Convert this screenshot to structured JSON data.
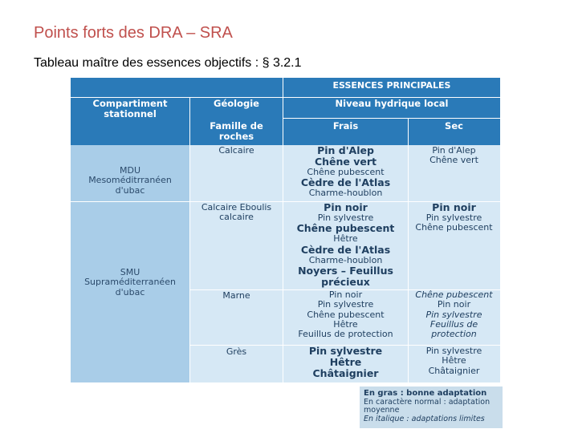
{
  "slide": {
    "title": "Points forts des DRA – SRA",
    "subtitle": "Tableau maître des essences objectifs : § 3.2.1"
  },
  "table": {
    "group_header": "ESSENCES PRINCIPALES",
    "col_compartment": "Compartiment stationnel",
    "col_geology": "Géologie",
    "col_family": "Famille de roches",
    "col_water": "Niveau hydrique local",
    "col_fresh": "Frais",
    "col_dry": "Sec",
    "zones": [
      {
        "name": "MDU Mesoméditrranéen d'ubac"
      },
      {
        "name": "SMU Supraméditerranéen d'ubac"
      }
    ],
    "rows": [
      {
        "rock": "Calcaire",
        "fresh": [
          {
            "t": "Pin d'Alep",
            "s": "b"
          },
          {
            "t": "Chêne vert",
            "s": "b"
          },
          {
            "t": "Chêne pubescent",
            "s": "s"
          },
          {
            "t": "Cèdre de l'Atlas",
            "s": "b"
          },
          {
            "t": "Charme-houblon",
            "s": "s"
          }
        ],
        "dry": [
          {
            "t": "Pin d'Alep",
            "s": "s"
          },
          {
            "t": "Chêne vert",
            "s": "s"
          }
        ]
      },
      {
        "rock": "Calcaire Eboulis calcaire",
        "fresh": [
          {
            "t": "Pin noir",
            "s": "b"
          },
          {
            "t": "Pin sylvestre",
            "s": "s"
          },
          {
            "t": "Chêne pubescent",
            "s": "b"
          },
          {
            "t": "Hêtre",
            "s": "s"
          },
          {
            "t": "Cèdre de l'Atlas",
            "s": "b"
          },
          {
            "t": "Charme-houblon",
            "s": "s"
          },
          {
            "t": "Noyers – Feuillus précieux",
            "s": "b"
          }
        ],
        "dry": [
          {
            "t": "Pin noir",
            "s": "b"
          },
          {
            "t": "Pin sylvestre",
            "s": "s"
          },
          {
            "t": "Chêne pubescent",
            "s": "s"
          }
        ]
      },
      {
        "rock": "Marne",
        "fresh": [
          {
            "t": "Pin noir",
            "s": "s"
          },
          {
            "t": "Pin sylvestre",
            "s": "s"
          },
          {
            "t": "Chêne pubescent",
            "s": "s"
          },
          {
            "t": "Hêtre",
            "s": "s"
          },
          {
            "t": "Feuillus de protection",
            "s": "s"
          }
        ],
        "dry": [
          {
            "t": "Chêne pubescent",
            "s": "it"
          },
          {
            "t": "Pin noir",
            "s": "s"
          },
          {
            "t": "Pin sylvestre",
            "s": "it"
          },
          {
            "t": "Feuillus de protection",
            "s": "it"
          }
        ]
      },
      {
        "rock": "Grès",
        "fresh": [
          {
            "t": "Pin sylvestre",
            "s": "b"
          },
          {
            "t": "Hêtre",
            "s": "b"
          },
          {
            "t": "Châtaignier",
            "s": "b"
          }
        ],
        "dry": [
          {
            "t": "Pin sylvestre",
            "s": "s"
          },
          {
            "t": "Hêtre",
            "s": "s"
          },
          {
            "t": "Châtaignier",
            "s": "s"
          }
        ]
      }
    ]
  },
  "legend": {
    "bold": "En gras : bonne adaptation",
    "normal": "En caractère normal : adaptation moyenne",
    "italic": "En italique : adaptations limites"
  }
}
